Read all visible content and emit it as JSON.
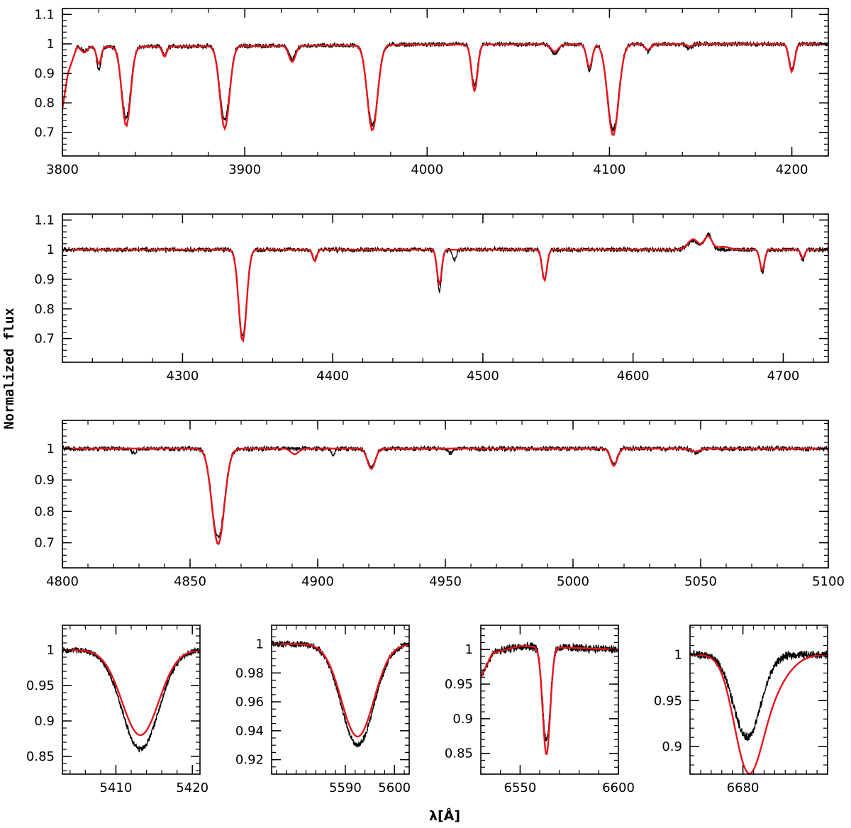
{
  "figure": {
    "ylabel": "Normalized flux",
    "xlabel": "λ[Å]",
    "colors": {
      "observed": "#000000",
      "model": "#e8141c"
    }
  },
  "chart_data": [
    {
      "type": "line",
      "xlim": [
        3800,
        4220
      ],
      "ylim": [
        0.62,
        1.12
      ],
      "xticks": [
        3800,
        3900,
        4000,
        4100,
        4200
      ],
      "yticks": [
        0.7,
        0.8,
        0.9,
        1,
        1.1
      ],
      "xminor": 20,
      "yminor": 0.02,
      "continuum": [
        [
          3800,
          0.78
        ],
        [
          3803,
          0.9
        ],
        [
          3808,
          0.99
        ],
        [
          3960,
          0.995
        ],
        [
          3990,
          0.998
        ],
        [
          4220,
          1.0
        ]
      ],
      "features": [
        {
          "center": 3812,
          "depth_model": 0.02,
          "depth_obs": 0.015,
          "width": 1.5
        },
        {
          "center": 3820,
          "depth_model": 0.06,
          "depth_obs": 0.08,
          "width": 1.2
        },
        {
          "center": 3835,
          "depth_model": 0.27,
          "depth_obs": 0.24,
          "width": 2.4
        },
        {
          "center": 3856,
          "depth_model": 0.035,
          "depth_obs": 0.03,
          "width": 1.2
        },
        {
          "center": 3889,
          "depth_model": 0.28,
          "depth_obs": 0.25,
          "width": 2.6
        },
        {
          "center": 3926,
          "depth_model": 0.055,
          "depth_obs": 0.045,
          "width": 1.8
        },
        {
          "center": 3970,
          "depth_model": 0.29,
          "depth_obs": 0.27,
          "width": 2.8
        },
        {
          "center": 4026,
          "depth_model": 0.16,
          "depth_obs": 0.14,
          "width": 1.6
        },
        {
          "center": 4070,
          "depth_model": 0.025,
          "depth_obs": 0.03,
          "width": 2.0
        },
        {
          "center": 4089,
          "depth_model": 0.08,
          "depth_obs": 0.09,
          "width": 1.5
        },
        {
          "center": 4102,
          "depth_model": 0.31,
          "depth_obs": 0.29,
          "width": 3.0
        },
        {
          "center": 4121,
          "depth_model": 0.02,
          "depth_obs": 0.025,
          "width": 1.5
        },
        {
          "center": 4144,
          "depth_model": 0.008,
          "depth_obs": 0.015,
          "width": 1.3
        },
        {
          "center": 4200,
          "depth_model": 0.095,
          "depth_obs": 0.085,
          "width": 1.5
        }
      ]
    },
    {
      "type": "line",
      "xlim": [
        4220,
        4730
      ],
      "ylim": [
        0.62,
        1.12
      ],
      "xticks": [
        4300,
        4400,
        4500,
        4600,
        4700
      ],
      "yticks": [
        0.7,
        0.8,
        0.9,
        1,
        1.1
      ],
      "xminor": 20,
      "yminor": 0.02,
      "continuum": [
        [
          4220,
          1.0
        ],
        [
          4730,
          1.0
        ]
      ],
      "features": [
        {
          "center": 4340,
          "depth_model": 0.31,
          "depth_obs": 0.29,
          "width": 2.6
        },
        {
          "center": 4388,
          "depth_model": 0.04,
          "depth_obs": 0.035,
          "width": 1.3
        },
        {
          "center": 4471,
          "depth_model": 0.12,
          "depth_obs": 0.14,
          "width": 1.5
        },
        {
          "center": 4481,
          "depth_model": 0.0,
          "depth_obs": 0.035,
          "width": 1.2
        },
        {
          "center": 4541,
          "depth_model": 0.105,
          "depth_obs": 0.1,
          "width": 1.6
        },
        {
          "center": 4640,
          "depth_model": -0.035,
          "depth_obs": -0.03,
          "width": 3.5
        },
        {
          "center": 4650,
          "depth_model": -0.045,
          "depth_obs": -0.05,
          "width": 2.5
        },
        {
          "center": 4660,
          "depth_model": -0.01,
          "depth_obs": 0.0,
          "width": 4.0
        },
        {
          "center": 4686,
          "depth_model": 0.07,
          "depth_obs": 0.075,
          "width": 1.5
        },
        {
          "center": 4713,
          "depth_model": 0.03,
          "depth_obs": 0.04,
          "width": 1.2
        }
      ]
    },
    {
      "type": "line",
      "xlim": [
        4800,
        5100
      ],
      "ylim": [
        0.62,
        1.09
      ],
      "xticks": [
        4800,
        4850,
        4900,
        4950,
        5000,
        5050,
        5100
      ],
      "yticks": [
        0.7,
        0.8,
        0.9,
        1
      ],
      "xminor": 10,
      "yminor": 0.02,
      "continuum": [
        [
          4800,
          1.0
        ],
        [
          5100,
          1.0
        ]
      ],
      "features": [
        {
          "center": 4828,
          "depth_model": 0.0,
          "depth_obs": 0.015,
          "width": 0.8
        },
        {
          "center": 4861,
          "depth_model": 0.305,
          "depth_obs": 0.285,
          "width": 2.4
        },
        {
          "center": 4891,
          "depth_model": 0.018,
          "depth_obs": 0.0,
          "width": 1.5
        },
        {
          "center": 4906,
          "depth_model": 0.0,
          "depth_obs": 0.02,
          "width": 0.6
        },
        {
          "center": 4921,
          "depth_model": 0.065,
          "depth_obs": 0.06,
          "width": 1.5
        },
        {
          "center": 4952,
          "depth_model": 0.0,
          "depth_obs": 0.015,
          "width": 0.8
        },
        {
          "center": 5016,
          "depth_model": 0.055,
          "depth_obs": 0.05,
          "width": 1.3
        },
        {
          "center": 5048,
          "depth_model": 0.01,
          "depth_obs": 0.012,
          "width": 1.5
        }
      ]
    },
    {
      "type": "line",
      "xlim": [
        5403,
        5421
      ],
      "ylim": [
        0.825,
        1.035
      ],
      "xticks": [
        5410,
        5420
      ],
      "ytick_labels": [
        "0.85",
        "0.9",
        "0.95",
        "1"
      ],
      "yticks": [
        0.85,
        0.9,
        0.95,
        1
      ],
      "xminor": 2,
      "yminor": 0.01,
      "continuum": [
        [
          5403,
          1.0
        ],
        [
          5421,
          1.0
        ]
      ],
      "features": [
        {
          "center": 5413.2,
          "depth_model": 0.12,
          "depth_obs": 0.14,
          "width": 2.4
        }
      ]
    },
    {
      "type": "line",
      "xlim": [
        5575,
        5603
      ],
      "ylim": [
        0.91,
        1.013
      ],
      "xticks": [
        5590,
        5600
      ],
      "ytick_labels": [
        "0.92",
        "0.94",
        "0.96",
        "0.98",
        "1"
      ],
      "yticks": [
        0.92,
        0.94,
        0.96,
        0.98,
        1
      ],
      "xminor": 2,
      "yminor": 0.005,
      "continuum": [
        [
          5575,
          1.0
        ],
        [
          5603,
          1.0
        ]
      ],
      "features": [
        {
          "center": 5592.5,
          "depth_model": 0.064,
          "depth_obs": 0.07,
          "width": 3.3
        }
      ]
    },
    {
      "type": "line",
      "xlim": [
        6530,
        6600
      ],
      "ylim": [
        0.82,
        1.035
      ],
      "xticks": [
        6550,
        6600
      ],
      "ytick_labels": [
        "0.85",
        "0.9",
        "0.95",
        "1"
      ],
      "yticks": [
        0.85,
        0.9,
        0.95,
        1
      ],
      "xminor": 10,
      "yminor": 0.01,
      "continuum": [
        [
          6530,
          0.96
        ],
        [
          6536,
          0.995
        ],
        [
          6550,
          1.005
        ],
        [
          6600,
          1.0
        ]
      ],
      "features": [
        {
          "center": 6563.4,
          "depth_model": 0.155,
          "depth_obs": 0.135,
          "width": 1.9
        }
      ]
    },
    {
      "type": "line",
      "xlim": [
        6670,
        6696
      ],
      "ylim": [
        0.87,
        1.032
      ],
      "xticks": [
        6680
      ],
      "ytick_labels": [
        "0.9",
        "0.95",
        "1"
      ],
      "yticks": [
        0.9,
        0.95,
        1
      ],
      "xminor": 2,
      "yminor": 0.01,
      "continuum": [
        [
          6670,
          1.0
        ],
        [
          6696,
          1.0
        ]
      ],
      "features": [
        {
          "center": 6680.8,
          "depth_model": 0.105,
          "depth_obs": 0.09,
          "width": 2.6
        },
        {
          "center": 6684.5,
          "depth_model": 0.04,
          "depth_obs": 0.0,
          "width": 3.5
        }
      ]
    }
  ]
}
